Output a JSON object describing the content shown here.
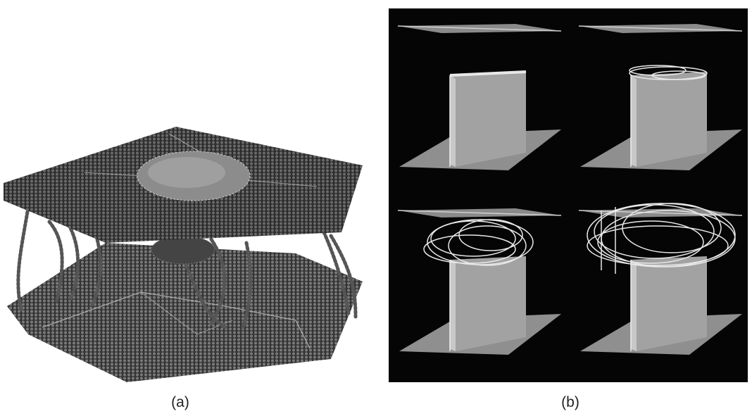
{
  "figure": {
    "panels": [
      {
        "id": "a",
        "label": "(a)",
        "content": "atomistic-simulation-render"
      },
      {
        "id": "b",
        "label": "(b)",
        "content": "dislocation-evolution-sequence"
      }
    ],
    "colors": {
      "panel_b_background": "#050505",
      "mesh_dark": "#3a3a3a",
      "plate_gray": "#9a9a9a",
      "dislocation_white": "#e8e8e8"
    }
  }
}
